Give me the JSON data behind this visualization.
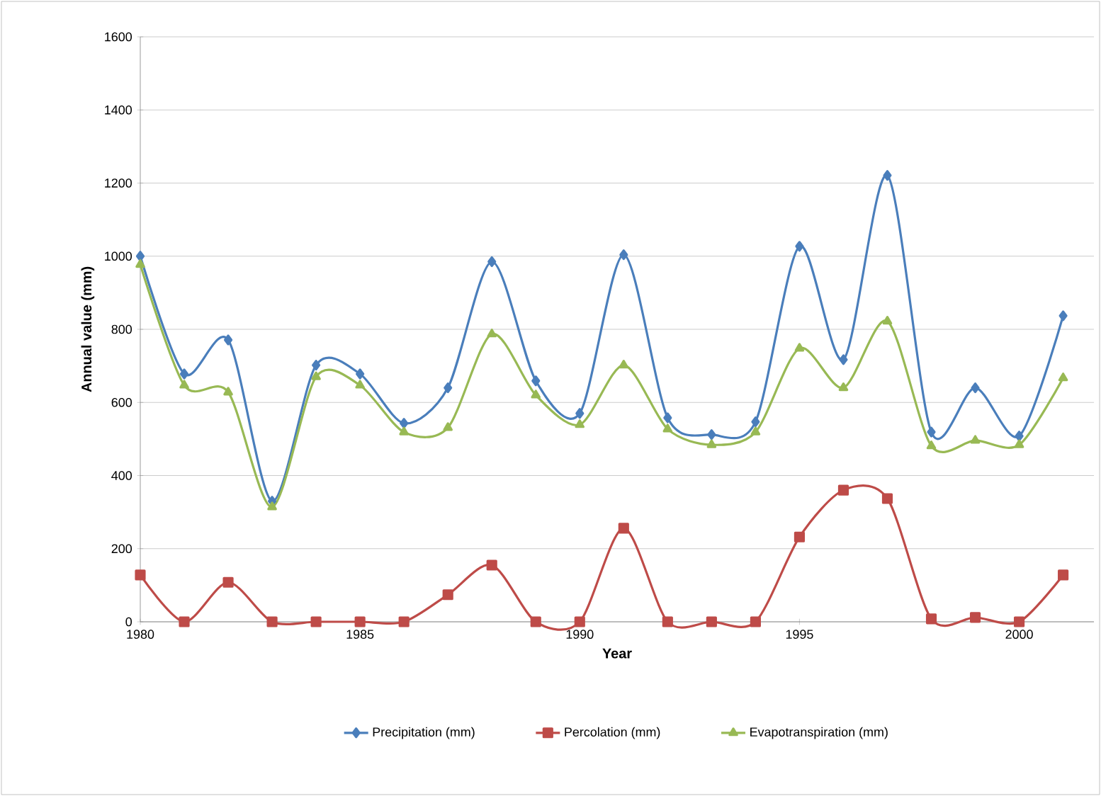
{
  "chart_data": {
    "type": "line",
    "xlabel": "Year",
    "ylabel": "Annual value (mm)",
    "x": [
      1980,
      1981,
      1982,
      1983,
      1984,
      1985,
      1986,
      1987,
      1988,
      1989,
      1990,
      1991,
      1992,
      1993,
      1994,
      1995,
      1996,
      1997,
      1998,
      1999,
      2000,
      2001
    ],
    "series": [
      {
        "name": "Precipitation (mm)",
        "color": "#4a7ebb",
        "marker": "diamond",
        "values": [
          1000,
          678,
          771,
          330,
          702,
          678,
          543,
          640,
          985,
          659,
          570,
          1004,
          558,
          512,
          547,
          1027,
          717,
          1221,
          519,
          640,
          508,
          837
        ]
      },
      {
        "name": "Percolation (mm)",
        "color": "#be4b48",
        "marker": "square",
        "values": [
          128,
          0,
          108,
          0,
          0,
          0,
          0,
          74,
          155,
          0,
          0,
          256,
          0,
          0,
          0,
          232,
          360,
          337,
          8,
          12,
          0,
          128
        ]
      },
      {
        "name": "Evapotranspiration (mm)",
        "color": "#98b954",
        "marker": "triangle",
        "values": [
          977,
          647,
          628,
          314,
          670,
          647,
          519,
          531,
          787,
          620,
          539,
          702,
          527,
          484,
          519,
          748,
          640,
          822,
          481,
          496,
          484,
          667
        ]
      }
    ],
    "xlim": [
      1980,
      2001.7
    ],
    "xticks": [
      1980,
      1985,
      1990,
      1995,
      2000
    ],
    "ylim": [
      0,
      1600
    ],
    "yticks": [
      0,
      200,
      400,
      600,
      800,
      1000,
      1200,
      1400,
      1600
    ],
    "grid": "y",
    "legend": "bottom",
    "line_style": "solid"
  }
}
